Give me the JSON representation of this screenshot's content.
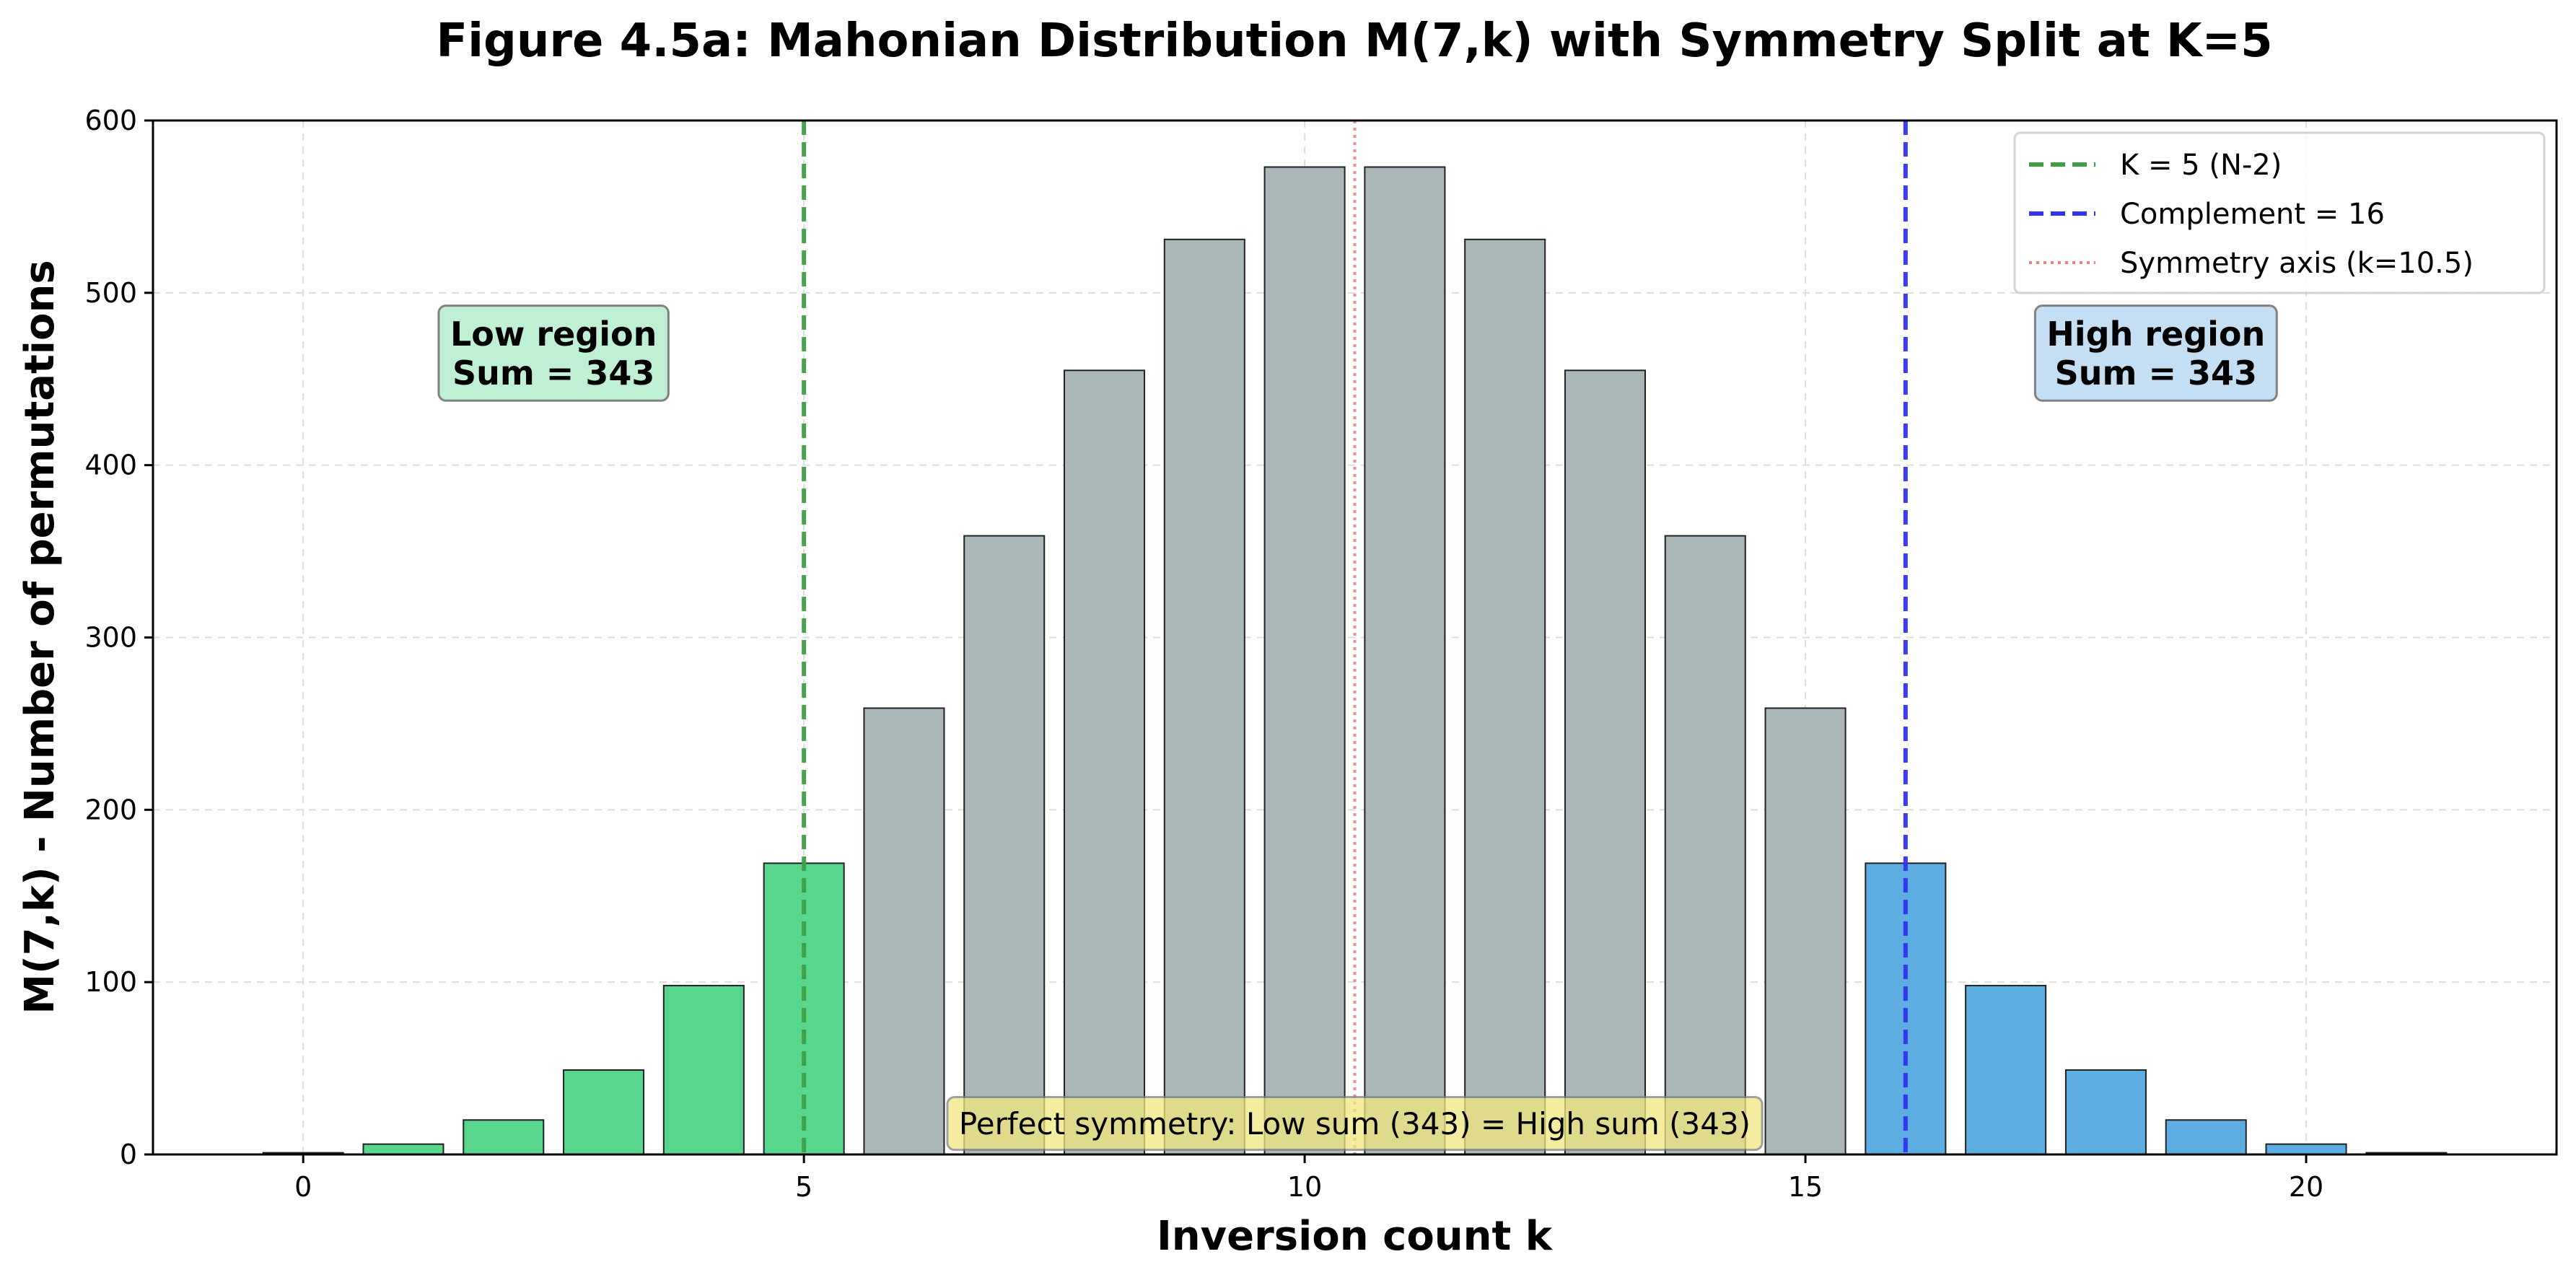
{
  "chart_data": {
    "type": "bar",
    "title": "Figure 4.5a: Mahonian Distribution M(7,k) with Symmetry Split at K=5",
    "xlabel": "Inversion count k",
    "ylabel": "M(7,k) - Number of permutations",
    "x": [
      0,
      1,
      2,
      3,
      4,
      5,
      6,
      7,
      8,
      9,
      10,
      11,
      12,
      13,
      14,
      15,
      16,
      17,
      18,
      19,
      20,
      21
    ],
    "values": [
      1,
      6,
      20,
      49,
      98,
      169,
      259,
      359,
      455,
      531,
      573,
      573,
      531,
      455,
      359,
      259,
      169,
      98,
      49,
      20,
      6,
      1
    ],
    "xlim": [
      -1.5,
      22.5
    ],
    "ylim": [
      0,
      600
    ],
    "xticks": [
      0,
      5,
      10,
      15,
      20
    ],
    "yticks": [
      0,
      100,
      200,
      300,
      400,
      500,
      600
    ],
    "grid": true,
    "legend_position": "top-right",
    "colors": {
      "low_region": "#58d68d",
      "middle_region": "#aab7b8",
      "high_region": "#5dade2",
      "bar_edge": "#222222",
      "k_line": "#3e9f45",
      "complement_line": "#3333ee",
      "symmetry_line": "#f08080"
    },
    "regions": {
      "low": {
        "from": 0,
        "to": 5
      },
      "high": {
        "from": 16,
        "to": 21
      }
    },
    "reference_lines": [
      {
        "x": 5,
        "label": "K = 5 (N-2)",
        "style": "dashed",
        "color_key": "k_line"
      },
      {
        "x": 16,
        "label": "Complement = 16",
        "style": "dashed",
        "color_key": "complement_line"
      },
      {
        "x": 10.5,
        "label": "Symmetry axis (k=10.5)",
        "style": "dotted",
        "color_key": "symmetry_line"
      }
    ],
    "annotations": [
      {
        "lines": [
          "Low region",
          "Sum = 343"
        ],
        "x": 2.5,
        "y": 465,
        "bg": "#bff0d4",
        "bold": true
      },
      {
        "lines": [
          "High region",
          "Sum = 343"
        ],
        "x": 18.5,
        "y": 465,
        "bg": "#c4dff4",
        "bold": true
      },
      {
        "lines": [
          "Perfect symmetry: Low sum (343) = High sum (343)"
        ],
        "x": 10.5,
        "y": 18,
        "bg": "#f1e67e",
        "bold": false
      }
    ]
  }
}
